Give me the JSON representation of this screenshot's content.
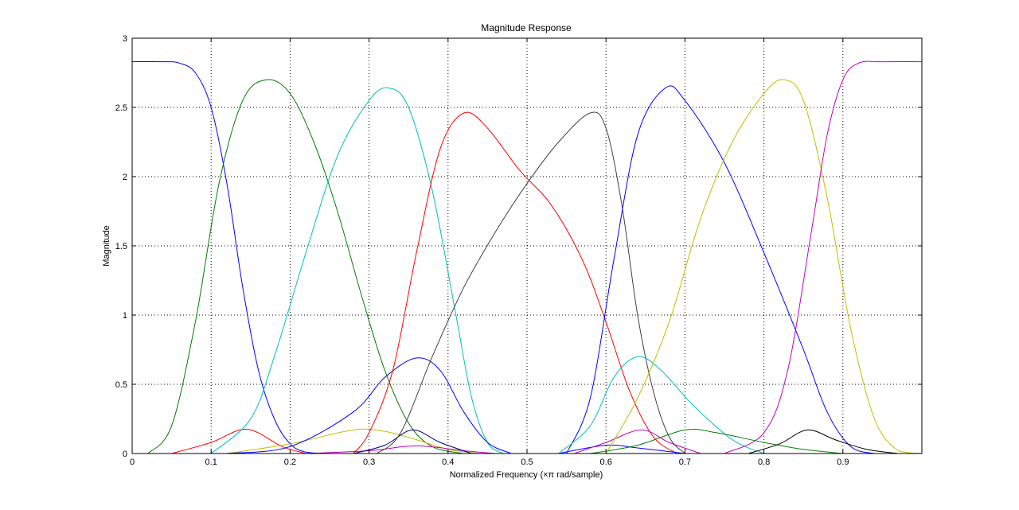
{
  "chart_data": {
    "type": "line",
    "title": "Magnitude Response",
    "xlabel": "Normalized Frequency  (×π rad/sample)",
    "ylabel": "Magnitude",
    "xlim": [
      0,
      1
    ],
    "ylim": [
      0,
      3
    ],
    "grid": true,
    "legend": "none",
    "x_ticks": [
      0,
      0.1,
      0.2,
      0.3,
      0.4,
      0.5,
      0.6,
      0.7,
      0.8,
      0.9
    ],
    "x_tick_labels": [
      "0",
      "0.1",
      "0.2",
      "0.3",
      "0.4",
      "0.5",
      "0.6",
      "0.7",
      "0.8",
      "0.9"
    ],
    "y_ticks": [
      0,
      0.5,
      1,
      1.5,
      2,
      2.5,
      3
    ],
    "y_tick_labels": [
      "0",
      "0.5",
      "1",
      "1.5",
      "2",
      "2.5",
      "3"
    ],
    "series": [
      {
        "color": "#0000ff",
        "points": [
          [
            0,
            2.83
          ],
          [
            0.04,
            2.83
          ],
          [
            0.06,
            2.82
          ],
          [
            0.08,
            2.75
          ],
          [
            0.1,
            2.5
          ],
          [
            0.12,
            1.95
          ],
          [
            0.14,
            1.2
          ],
          [
            0.16,
            0.6
          ],
          [
            0.18,
            0.25
          ],
          [
            0.2,
            0.07
          ],
          [
            0.22,
            0.01
          ],
          [
            0.25,
            0
          ]
        ]
      },
      {
        "color": "#007f00",
        "points": [
          [
            0.02,
            0
          ],
          [
            0.05,
            0.2
          ],
          [
            0.08,
            0.95
          ],
          [
            0.11,
            1.95
          ],
          [
            0.14,
            2.55
          ],
          [
            0.17,
            2.7
          ],
          [
            0.2,
            2.6
          ],
          [
            0.23,
            2.25
          ],
          [
            0.26,
            1.75
          ],
          [
            0.29,
            1.15
          ],
          [
            0.32,
            0.6
          ],
          [
            0.35,
            0.22
          ],
          [
            0.38,
            0.05
          ],
          [
            0.42,
            0
          ]
        ]
      },
      {
        "color": "#ff0000",
        "points": [
          [
            0.05,
            0
          ],
          [
            0.1,
            0.08
          ],
          [
            0.145,
            0.175
          ],
          [
            0.19,
            0.05
          ],
          [
            0.22,
            0
          ]
        ]
      },
      {
        "color": "#00bfbf",
        "points": [
          [
            0.1,
            0
          ],
          [
            0.15,
            0.25
          ],
          [
            0.18,
            0.7
          ],
          [
            0.22,
            1.45
          ],
          [
            0.26,
            2.15
          ],
          [
            0.3,
            2.55
          ],
          [
            0.325,
            2.64
          ],
          [
            0.35,
            2.5
          ],
          [
            0.38,
            1.9
          ],
          [
            0.41,
            1.0
          ],
          [
            0.43,
            0.4
          ],
          [
            0.45,
            0.08
          ],
          [
            0.47,
            0
          ]
        ]
      },
      {
        "color": "#bfbf00",
        "points": [
          [
            0.12,
            0
          ],
          [
            0.2,
            0.07
          ],
          [
            0.28,
            0.17
          ],
          [
            0.32,
            0.16
          ],
          [
            0.36,
            0.1
          ],
          [
            0.4,
            0.03
          ],
          [
            0.44,
            0
          ]
        ]
      },
      {
        "color": "#bf00bf",
        "points": [
          [
            0.22,
            0
          ],
          [
            0.3,
            0.02
          ],
          [
            0.36,
            0.055
          ],
          [
            0.42,
            0.02
          ],
          [
            0.46,
            0
          ]
        ]
      },
      {
        "color": "#0000ff",
        "points": [
          [
            0.12,
            0
          ],
          [
            0.2,
            0.05
          ],
          [
            0.28,
            0.3
          ],
          [
            0.32,
            0.55
          ],
          [
            0.36,
            0.69
          ],
          [
            0.39,
            0.6
          ],
          [
            0.42,
            0.3
          ],
          [
            0.45,
            0.08
          ],
          [
            0.48,
            0
          ]
        ]
      },
      {
        "color": "#000080",
        "points": [
          [
            0.28,
            0
          ],
          [
            0.32,
            0.06
          ],
          [
            0.355,
            0.17
          ],
          [
            0.39,
            0.08
          ],
          [
            0.43,
            0
          ]
        ]
      },
      {
        "color": "#ff0000",
        "points": [
          [
            0.28,
            0
          ],
          [
            0.3,
            0.15
          ],
          [
            0.33,
            0.6
          ],
          [
            0.36,
            1.45
          ],
          [
            0.39,
            2.2
          ],
          [
            0.42,
            2.46
          ],
          [
            0.45,
            2.35
          ],
          [
            0.49,
            2.05
          ],
          [
            0.53,
            1.8
          ],
          [
            0.57,
            1.4
          ],
          [
            0.6,
            0.95
          ],
          [
            0.63,
            0.45
          ],
          [
            0.66,
            0.12
          ],
          [
            0.69,
            0
          ]
        ]
      },
      {
        "color": "#404040",
        "points": [
          [
            0.31,
            0
          ],
          [
            0.34,
            0.15
          ],
          [
            0.38,
            0.7
          ],
          [
            0.42,
            1.2
          ],
          [
            0.46,
            1.6
          ],
          [
            0.5,
            1.95
          ],
          [
            0.54,
            2.25
          ],
          [
            0.58,
            2.46
          ],
          [
            0.6,
            2.35
          ],
          [
            0.62,
            1.8
          ],
          [
            0.64,
            1.0
          ],
          [
            0.66,
            0.45
          ],
          [
            0.68,
            0.12
          ],
          [
            0.7,
            0
          ]
        ]
      },
      {
        "color": "#0000ff",
        "points": [
          [
            0.54,
            0
          ],
          [
            0.6,
            0.06
          ],
          [
            0.64,
            0.04
          ],
          [
            0.7,
            0
          ]
        ]
      },
      {
        "color": "#0000ff",
        "points": [
          [
            0.55,
            0
          ],
          [
            0.58,
            0.4
          ],
          [
            0.61,
            1.4
          ],
          [
            0.64,
            2.3
          ],
          [
            0.675,
            2.64
          ],
          [
            0.7,
            2.55
          ],
          [
            0.75,
            2.1
          ],
          [
            0.8,
            1.45
          ],
          [
            0.85,
            0.75
          ],
          [
            0.88,
            0.3
          ],
          [
            0.91,
            0.05
          ],
          [
            0.94,
            0
          ]
        ]
      },
      {
        "color": "#00bfbf",
        "points": [
          [
            0.54,
            0
          ],
          [
            0.58,
            0.2
          ],
          [
            0.61,
            0.55
          ],
          [
            0.64,
            0.7
          ],
          [
            0.67,
            0.6
          ],
          [
            0.71,
            0.35
          ],
          [
            0.76,
            0.1
          ],
          [
            0.8,
            0
          ]
        ]
      },
      {
        "color": "#bf00bf",
        "points": [
          [
            0.56,
            0
          ],
          [
            0.6,
            0.08
          ],
          [
            0.645,
            0.17
          ],
          [
            0.68,
            0.08
          ],
          [
            0.72,
            0
          ]
        ]
      },
      {
        "color": "#007f00",
        "points": [
          [
            0.58,
            0
          ],
          [
            0.64,
            0.06
          ],
          [
            0.7,
            0.17
          ],
          [
            0.74,
            0.15
          ],
          [
            0.8,
            0.08
          ],
          [
            0.85,
            0.03
          ],
          [
            0.9,
            0
          ]
        ]
      },
      {
        "color": "#bfbf00",
        "points": [
          [
            0.6,
            0
          ],
          [
            0.64,
            0.4
          ],
          [
            0.68,
            0.95
          ],
          [
            0.72,
            1.7
          ],
          [
            0.76,
            2.25
          ],
          [
            0.8,
            2.6
          ],
          [
            0.825,
            2.7
          ],
          [
            0.85,
            2.55
          ],
          [
            0.88,
            1.85
          ],
          [
            0.91,
            0.9
          ],
          [
            0.94,
            0.25
          ],
          [
            0.97,
            0.02
          ],
          [
            1.0,
            0
          ]
        ]
      },
      {
        "color": "#000000",
        "points": [
          [
            0.78,
            0
          ],
          [
            0.82,
            0.07
          ],
          [
            0.855,
            0.17
          ],
          [
            0.89,
            0.1
          ],
          [
            0.93,
            0.03
          ],
          [
            0.97,
            0
          ]
        ]
      },
      {
        "color": "#bf00bf",
        "points": [
          [
            0.75,
            0
          ],
          [
            0.8,
            0.15
          ],
          [
            0.83,
            0.6
          ],
          [
            0.86,
            1.6
          ],
          [
            0.88,
            2.3
          ],
          [
            0.9,
            2.7
          ],
          [
            0.92,
            2.82
          ],
          [
            0.95,
            2.83
          ],
          [
            1.0,
            2.83
          ]
        ]
      }
    ]
  }
}
